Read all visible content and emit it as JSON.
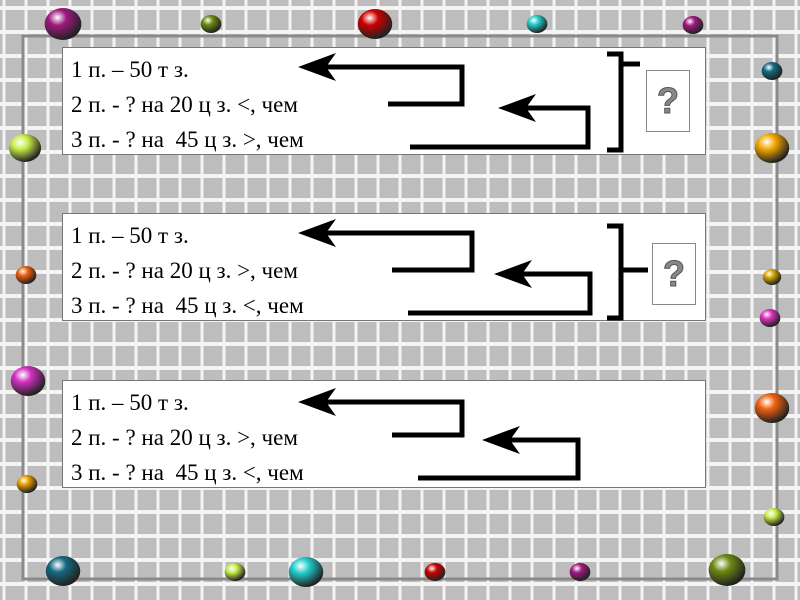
{
  "problems": [
    {
      "lines": [
        "1 п. – 50 т з.",
        "2 п. - ? на 20 ц з. <, чем",
        "3 п. - ? на  45 ц з. >, чем"
      ],
      "question": "?"
    },
    {
      "lines": [
        "1 п. – 50 т з.",
        "2 п. - ? на 20 ц з. >, чем",
        "3 п. - ? на  45 ц з. <, чем"
      ],
      "question": "?"
    },
    {
      "lines": [
        "1 п. – 50 т з.",
        "2 п. - ? на 20 ц з. >, чем",
        "3 п. - ? на  45 ц з. <, чем"
      ]
    }
  ],
  "icons": {
    "question": "question-mark-icon",
    "arrow": "arrow-left-icon",
    "bracket": "right-bracket-icon"
  },
  "colors": {
    "background": "#bdbdbd",
    "grid": "#ffffff",
    "text": "#000000"
  }
}
